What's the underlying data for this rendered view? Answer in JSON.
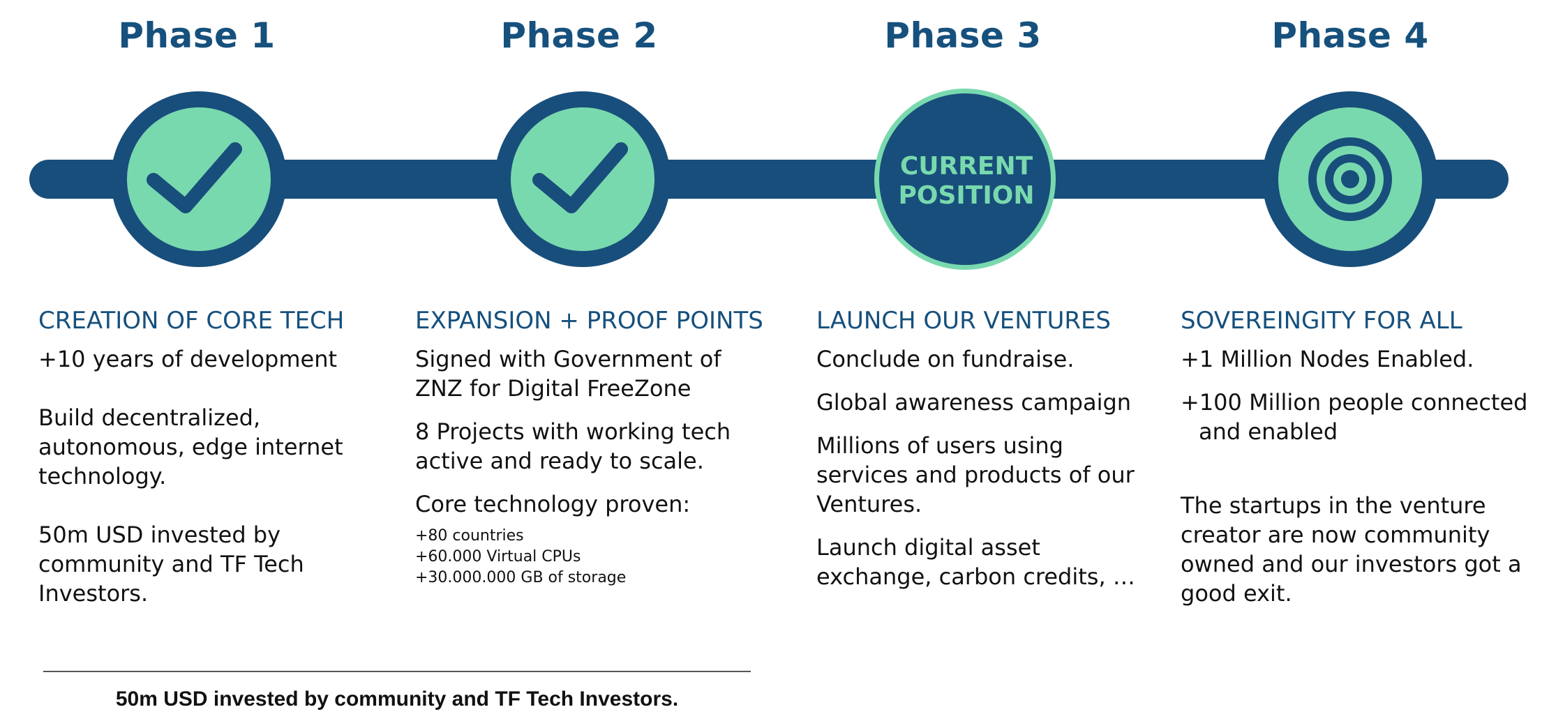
{
  "phases": [
    {
      "title": "Phase 1",
      "icon": "checkmark-icon",
      "status": "done"
    },
    {
      "title": "Phase 2",
      "icon": "checkmark-icon",
      "status": "done"
    },
    {
      "title": "Phase 3",
      "icon": "current-position-badge",
      "status": "current",
      "badge": [
        "CURRENT",
        "POSITION"
      ]
    },
    {
      "title": "Phase 4",
      "icon": "target-icon",
      "status": "goal"
    }
  ],
  "columns": [
    {
      "heading": "CREATION OF CORE TECH",
      "items": [
        "+10 years of development",
        "Build decentralized, autonomous, edge internet technology.",
        "50m USD invested by community and TF Tech Investors."
      ]
    },
    {
      "heading": "EXPANSION + PROOF POINTS",
      "items": [
        "Signed with Government of ZNZ for Digital FreeZone",
        "8 Projects with working tech active and ready to scale.",
        "Core technology proven:"
      ],
      "stats": [
        "+80 countries",
        "+60.000 Virtual CPUs",
        "+30.000.000 GB of storage"
      ]
    },
    {
      "heading": "LAUNCH OUR VENTURES",
      "items": [
        "Conclude on fundraise.",
        "Global awareness campaign",
        "Millions of users using services and products of our Ventures.",
        "Launch digital asset exchange, carbon credits, …"
      ]
    },
    {
      "heading": "SOVEREINGITY FOR ALL",
      "items": [
        "+1 Million Nodes Enabled.",
        "+100 Million people connected",
        "and enabled",
        "The startups in the venture creator are now community owned and our investors got a good exit."
      ]
    }
  ],
  "footer": "50m USD invested by community and TF Tech Investors.",
  "colors": {
    "navy": "#184e7b",
    "mint": "#79d9ae",
    "heading": "#16507d"
  }
}
